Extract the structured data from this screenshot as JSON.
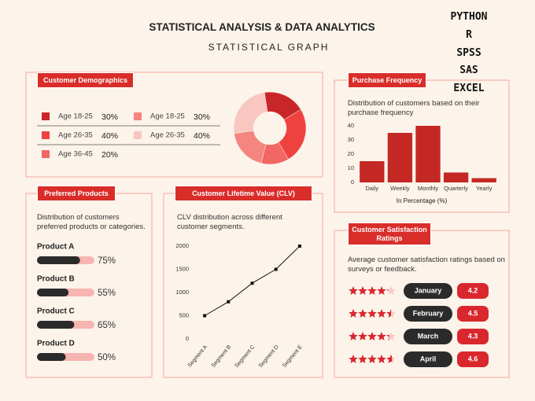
{
  "header": {
    "title": "STATISTICAL ANALYSIS  & DATA ANALYTICS",
    "subtitle": "STATISTICAL GRAPH"
  },
  "tools": [
    "PYTHON",
    "R",
    "SPSS",
    "SAS",
    "EXCEL"
  ],
  "chart_data": [
    {
      "type": "pie",
      "title": "Customer Demographics",
      "categories": [
        "Age 18-25",
        "Age 26-35",
        "Age 36-45",
        "Age 18-25",
        "Age 26-35"
      ],
      "values": [
        30,
        40,
        20,
        30,
        40
      ],
      "value_labels": [
        "30%",
        "40%",
        "20%",
        "30%",
        "40%"
      ],
      "colors": [
        "#c9262a",
        "#ee4240",
        "#f26663",
        "#f5857f",
        "#f9c6c0"
      ]
    },
    {
      "type": "bar",
      "title": "Purchase Frequency",
      "subtitle": "Distribution of customers based on their purchase frequency",
      "categories": [
        "Daily",
        "Weekly",
        "Monthly",
        "Quarterly",
        "Yearly"
      ],
      "values": [
        15,
        35,
        40,
        7,
        3
      ],
      "color": "#c42824",
      "ylim": [
        0,
        40
      ],
      "yticks": [
        0,
        10,
        20,
        30,
        40
      ],
      "xlabel": "In Percentage (%)"
    },
    {
      "type": "progress",
      "title": "Preferred Products",
      "subtitle": "Distribution of customers preferred products or categories.",
      "categories": [
        "Product A",
        "Product B",
        "Product C",
        "Product D"
      ],
      "values": [
        75,
        55,
        65,
        50
      ],
      "value_labels": [
        "75%",
        "55%",
        "65%",
        "50%"
      ],
      "xlim": [
        0,
        100
      ],
      "color": "#2b2b2b",
      "track_color": "#f6b5b0"
    },
    {
      "type": "line",
      "title": "Customer Lifetime Value (CLV)",
      "subtitle": "CLV distribution across different customer segments.",
      "categories": [
        "Segment A",
        "Segment B",
        "Segment C",
        "Segment D",
        "Segment E"
      ],
      "values": [
        500,
        800,
        1200,
        1500,
        2000
      ],
      "color": "#111111",
      "ylim": [
        0,
        2000
      ],
      "yticks": [
        0,
        500,
        1000,
        1500,
        2000
      ]
    },
    {
      "type": "rating",
      "title": "Customer Satisfaction Ratings",
      "subtitle": "Average customer satisfaction ratings based on surveys or feedback.",
      "categories": [
        "January",
        "February",
        "March",
        "April"
      ],
      "values": [
        4.2,
        4.5,
        4.3,
        4.6
      ],
      "xlim": [
        0,
        5
      ],
      "color": "#d9272e"
    }
  ]
}
